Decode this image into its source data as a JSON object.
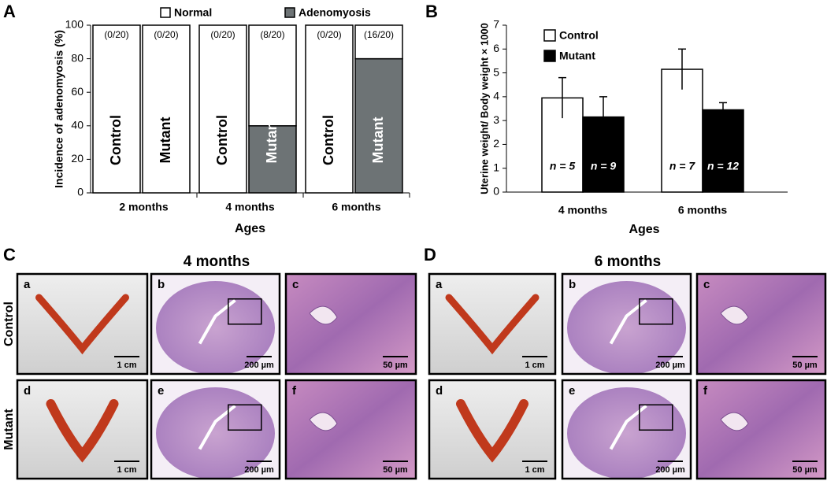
{
  "chart_data": [
    {
      "type": "stacked_bar",
      "panel": "A",
      "ylabel": "Incidence of adenomyosis (%)",
      "xlabel": "Ages",
      "categories": [
        "Control",
        "Mutant",
        "Control",
        "Mutant",
        "Control",
        "Mutant"
      ],
      "groups": [
        "2 months",
        "4 months",
        "6 months"
      ],
      "series": [
        {
          "name": "Normal",
          "color": "#ffffff",
          "values": [
            100,
            100,
            100,
            60,
            100,
            20
          ]
        },
        {
          "name": "Adenomyosis",
          "color": "#6d7375",
          "values": [
            0,
            0,
            0,
            40,
            0,
            80
          ],
          "value_labels": [
            "(0/20)",
            "(0/20)",
            "(0/20)",
            "(8/20)",
            "(0/20)",
            "(16/20)"
          ]
        }
      ],
      "ylim": [
        0,
        100
      ],
      "yticks": [
        0,
        20,
        40,
        60,
        80,
        100
      ]
    },
    {
      "type": "grouped_bar",
      "panel": "B",
      "ylabel": "Uterine weight/ Body weight × 1000",
      "xlabel": "Ages",
      "categories": [
        "4 months",
        "6 months"
      ],
      "series": [
        {
          "name": "Control",
          "color": "#ffffff",
          "values": [
            3.95,
            5.15
          ],
          "errors": [
            0.85,
            0.85
          ],
          "n_labels": [
            "n = 5",
            "n = 7"
          ]
        },
        {
          "name": "Mutant",
          "color": "#000000",
          "values": [
            3.15,
            3.45
          ],
          "errors": [
            0.85,
            0.3
          ],
          "n_labels": [
            "n = 9",
            "n = 12"
          ]
        }
      ],
      "ylim": [
        0,
        7
      ],
      "yticks": [
        0,
        1,
        2,
        3,
        4,
        5,
        6,
        7
      ]
    }
  ],
  "photo_panels": [
    {
      "letter": "C",
      "title": "4 months",
      "row_labels": [
        "Control",
        "Mutant"
      ],
      "cells": [
        {
          "letter": "a",
          "scale": "1 cm"
        },
        {
          "letter": "b",
          "scale": "200 µm"
        },
        {
          "letter": "c",
          "scale": "50 µm"
        },
        {
          "letter": "d",
          "scale": "1 cm"
        },
        {
          "letter": "e",
          "scale": "200 µm"
        },
        {
          "letter": "f",
          "scale": "50 µm"
        }
      ]
    },
    {
      "letter": "D",
      "title": "6 months",
      "cells": [
        {
          "letter": "a",
          "scale": "1 cm"
        },
        {
          "letter": "b",
          "scale": "200 µm"
        },
        {
          "letter": "c",
          "scale": "50 µm"
        },
        {
          "letter": "d",
          "scale": "1 cm"
        },
        {
          "letter": "e",
          "scale": "200 µm"
        },
        {
          "letter": "f",
          "scale": "50 µm"
        }
      ]
    }
  ]
}
